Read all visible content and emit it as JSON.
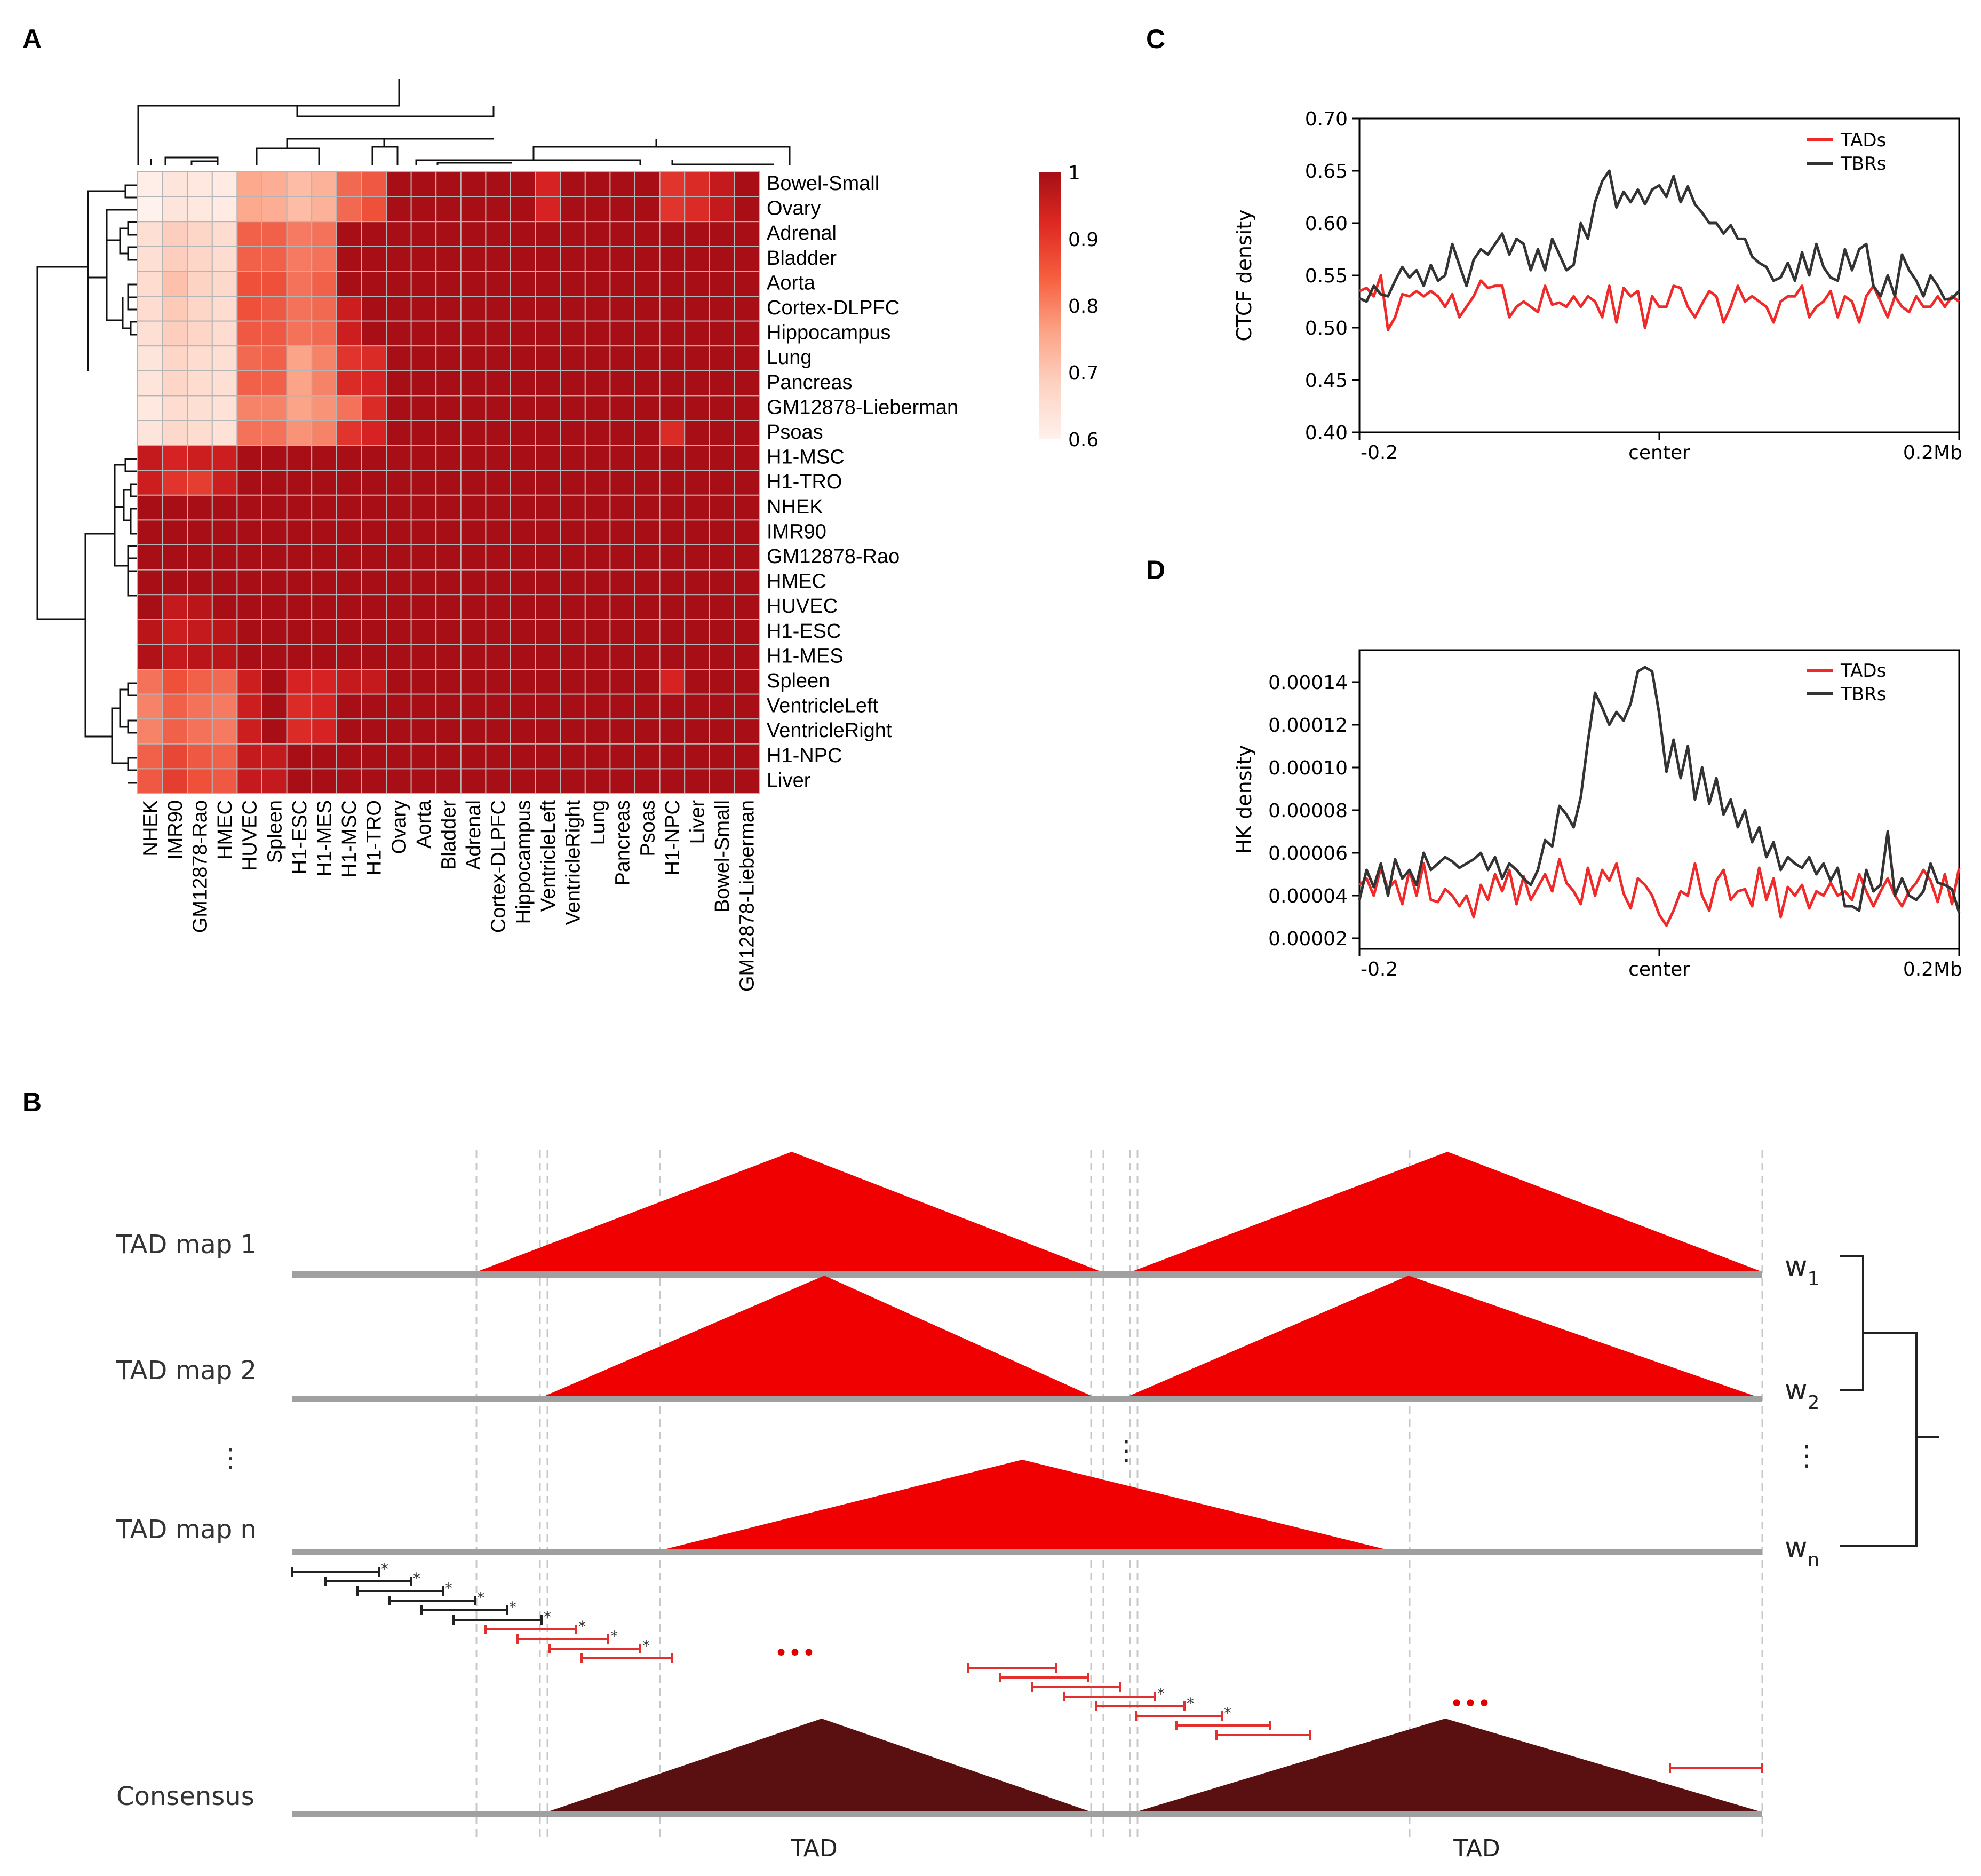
{
  "panels": {
    "a": "A",
    "b": "B",
    "c": "C",
    "d": "D"
  },
  "colors": {
    "heat_low": "#fde4dc",
    "heat_high": "#a50f15",
    "tads_line": "#ee2a2a",
    "tbrs_line": "#333333",
    "tad_fill": "#f00000",
    "consensus_fill": "#5a1010",
    "baseline": "#a0a0a0"
  },
  "heatmap": {
    "row_labels": [
      "Bowel-Small",
      "Ovary",
      "Adrenal",
      "Bladder",
      "Aorta",
      "Cortex-DLPFC",
      "Hippocampus",
      "Lung",
      "Pancreas",
      "GM12878-Lieberman",
      "Psoas",
      "H1-MSC",
      "H1-TRO",
      "NHEK",
      "IMR90",
      "GM12878-Rao",
      "HMEC",
      "HUVEC",
      "H1-ESC",
      "H1-MES",
      "Spleen",
      "VentricleLeft",
      "VentricleRight",
      "H1-NPC",
      "Liver"
    ],
    "col_labels": [
      "NHEK",
      "IMR90",
      "GM12878-Rao",
      "HMEC",
      "HUVEC",
      "Spleen",
      "H1-ESC",
      "H1-MES",
      "H1-MSC",
      "H1-TRO",
      "Ovary",
      "Aorta",
      "Bladder",
      "Adrenal",
      "Cortex-DLPFC",
      "Hippocampus",
      "VentricleLeft",
      "VentricleRight",
      "Lung",
      "Pancreas",
      "Psoas",
      "H1-NPC",
      "Liver",
      "Bowel-Small",
      "GM12878-Lieberman"
    ],
    "colorbar_ticks": [
      "1",
      "0.9",
      "0.8",
      "0.7",
      "0.6"
    ],
    "values": [
      [
        0.61,
        0.64,
        0.63,
        0.62,
        0.79,
        0.78,
        0.75,
        0.77,
        0.87,
        0.89,
        1,
        1,
        1,
        1,
        1,
        1,
        0.95,
        1,
        1,
        1,
        1,
        0.93,
        0.94,
        0.97,
        1
      ],
      [
        0.6,
        0.64,
        0.63,
        0.62,
        0.79,
        0.78,
        0.75,
        0.77,
        0.87,
        0.9,
        1,
        1,
        1,
        1,
        1,
        1,
        0.95,
        1,
        1,
        1,
        1,
        0.93,
        0.94,
        0.97,
        1
      ],
      [
        0.66,
        0.71,
        0.69,
        0.67,
        0.88,
        0.88,
        0.85,
        0.86,
        1,
        1,
        1,
        1,
        1,
        1,
        1,
        1,
        1,
        1,
        1,
        1,
        1,
        1,
        1,
        1,
        1
      ],
      [
        0.66,
        0.71,
        0.69,
        0.67,
        0.88,
        0.88,
        0.85,
        0.86,
        1,
        1,
        1,
        1,
        1,
        1,
        1,
        1,
        1,
        1,
        1,
        1,
        1,
        1,
        1,
        1,
        1
      ],
      [
        0.67,
        0.74,
        0.7,
        0.68,
        0.9,
        0.9,
        0.86,
        0.88,
        1,
        1,
        1,
        1,
        1,
        1,
        1,
        1,
        1,
        1,
        1,
        1,
        1,
        1,
        1,
        1,
        1
      ],
      [
        0.67,
        0.72,
        0.69,
        0.67,
        0.9,
        0.89,
        0.86,
        0.87,
        0.96,
        1,
        1,
        1,
        1,
        1,
        1,
        1,
        1,
        1,
        1,
        1,
        1,
        1,
        1,
        1,
        1
      ],
      [
        0.66,
        0.71,
        0.69,
        0.67,
        0.89,
        0.89,
        0.86,
        0.87,
        0.96,
        1,
        1,
        1,
        1,
        1,
        1,
        1,
        1,
        1,
        1,
        1,
        1,
        1,
        1,
        1,
        1
      ],
      [
        0.64,
        0.69,
        0.67,
        0.66,
        0.87,
        0.88,
        0.8,
        0.84,
        0.93,
        0.94,
        1,
        1,
        1,
        1,
        1,
        1,
        1,
        1,
        1,
        1,
        1,
        1,
        1,
        1,
        1
      ],
      [
        0.64,
        0.69,
        0.67,
        0.66,
        0.88,
        0.88,
        0.8,
        0.84,
        0.94,
        0.95,
        1,
        1,
        1,
        1,
        1,
        1,
        1,
        1,
        1,
        1,
        1,
        1,
        1,
        1,
        1
      ],
      [
        0.63,
        0.67,
        0.66,
        0.65,
        0.84,
        0.84,
        0.8,
        0.82,
        0.86,
        0.94,
        1,
        1,
        1,
        1,
        1,
        1,
        1,
        1,
        1,
        1,
        1,
        1,
        1,
        1,
        1
      ],
      [
        0.64,
        0.68,
        0.67,
        0.65,
        0.86,
        0.86,
        0.82,
        0.84,
        0.93,
        0.95,
        1,
        1,
        1,
        1,
        1,
        1,
        1,
        1,
        1,
        1,
        1,
        0.94,
        1,
        1,
        1
      ],
      [
        0.97,
        0.95,
        0.96,
        0.96,
        1,
        1,
        1,
        1,
        1,
        1,
        1,
        1,
        1,
        1,
        1,
        1,
        1,
        1,
        1,
        1,
        1,
        1,
        1,
        1,
        1
      ],
      [
        0.96,
        0.93,
        0.92,
        0.96,
        1,
        1,
        1,
        1,
        1,
        1,
        1,
        1,
        1,
        1,
        1,
        1,
        1,
        1,
        1,
        1,
        1,
        1,
        1,
        1,
        1
      ],
      [
        1,
        1,
        1,
        1,
        1,
        1,
        1,
        1,
        1,
        1,
        1,
        1,
        1,
        1,
        1,
        1,
        1,
        1,
        1,
        1,
        1,
        1,
        1,
        1,
        1
      ],
      [
        1,
        1,
        1,
        1,
        1,
        1,
        1,
        1,
        1,
        1,
        1,
        1,
        1,
        1,
        1,
        1,
        1,
        1,
        1,
        1,
        1,
        1,
        1,
        1,
        1
      ],
      [
        1,
        1,
        1,
        1,
        1,
        1,
        1,
        1,
        1,
        1,
        1,
        1,
        1,
        1,
        1,
        1,
        1,
        1,
        1,
        1,
        1,
        1,
        1,
        1,
        1
      ],
      [
        1,
        1,
        1,
        1,
        1,
        1,
        1,
        1,
        1,
        1,
        1,
        1,
        1,
        1,
        1,
        1,
        1,
        1,
        1,
        1,
        1,
        1,
        1,
        1,
        1
      ],
      [
        1,
        0.97,
        0.98,
        1,
        1,
        1,
        1,
        1,
        1,
        1,
        1,
        1,
        1,
        1,
        1,
        1,
        1,
        1,
        1,
        1,
        1,
        1,
        1,
        1,
        1
      ],
      [
        0.98,
        0.96,
        0.97,
        0.98,
        1,
        1,
        1,
        1,
        1,
        1,
        1,
        1,
        1,
        1,
        1,
        1,
        1,
        1,
        1,
        1,
        1,
        1,
        1,
        1,
        1
      ],
      [
        0.99,
        0.97,
        0.98,
        0.98,
        1,
        1,
        1,
        1,
        1,
        1,
        1,
        1,
        1,
        1,
        1,
        1,
        1,
        1,
        1,
        1,
        1,
        1,
        1,
        1,
        1
      ],
      [
        0.86,
        0.9,
        0.88,
        0.87,
        0.96,
        1,
        0.95,
        0.95,
        0.97,
        0.97,
        1,
        1,
        1,
        1,
        1,
        1,
        1,
        1,
        1,
        1,
        1,
        0.95,
        1,
        1,
        1
      ],
      [
        0.84,
        0.88,
        0.86,
        0.85,
        0.96,
        1,
        0.94,
        0.95,
        1,
        1,
        1,
        1,
        1,
        1,
        1,
        1,
        1,
        1,
        1,
        1,
        1,
        1,
        1,
        1,
        1
      ],
      [
        0.84,
        0.88,
        0.86,
        0.85,
        0.96,
        1,
        0.94,
        0.95,
        1,
        1,
        1,
        1,
        1,
        1,
        1,
        1,
        1,
        1,
        1,
        1,
        1,
        1,
        1,
        1,
        1
      ],
      [
        0.88,
        0.91,
        0.89,
        0.88,
        0.97,
        0.97,
        1,
        1,
        1,
        1,
        1,
        1,
        1,
        1,
        1,
        1,
        1,
        1,
        1,
        1,
        1,
        1,
        1,
        1,
        1
      ],
      [
        0.89,
        0.92,
        0.9,
        0.89,
        0.97,
        0.97,
        1,
        1,
        1,
        1,
        1,
        1,
        1,
        1,
        1,
        1,
        1,
        1,
        1,
        1,
        1,
        1,
        1,
        1,
        1
      ]
    ]
  },
  "chart_data": [
    {
      "type": "line",
      "panel": "C",
      "ylabel": "CTCF density",
      "xlabel": "",
      "x_tick_labels": [
        "-0.2",
        "center",
        "0.2Mb"
      ],
      "ylim": [
        0.4,
        0.7
      ],
      "yticks": [
        "0.70",
        "0.65",
        "0.60",
        "0.55",
        "0.50",
        "0.45",
        "0.40"
      ],
      "legend": [
        "TADs",
        "TBRs"
      ],
      "legend_position": "top-right",
      "series": [
        {
          "name": "TADs",
          "values": [
            0.535,
            0.538,
            0.53,
            0.55,
            0.498,
            0.51,
            0.532,
            0.53,
            0.535,
            0.53,
            0.535,
            0.53,
            0.52,
            0.532,
            0.51,
            0.52,
            0.53,
            0.545,
            0.538,
            0.54,
            0.54,
            0.51,
            0.52,
            0.525,
            0.52,
            0.515,
            0.54,
            0.522,
            0.524,
            0.52,
            0.53,
            0.52,
            0.53,
            0.525,
            0.51,
            0.54,
            0.505,
            0.538,
            0.53,
            0.535,
            0.5,
            0.53,
            0.52,
            0.52,
            0.54,
            0.538,
            0.52,
            0.51,
            0.523,
            0.535,
            0.53,
            0.505,
            0.52,
            0.54,
            0.525,
            0.53,
            0.525,
            0.52,
            0.505,
            0.525,
            0.53,
            0.53,
            0.54,
            0.51,
            0.52,
            0.525,
            0.535,
            0.51,
            0.53,
            0.525,
            0.505,
            0.53,
            0.54,
            0.525,
            0.51,
            0.53,
            0.52,
            0.515,
            0.53,
            0.52,
            0.52,
            0.53,
            0.52,
            0.53,
            0.525
          ]
        },
        {
          "name": "TBRs",
          "values": [
            0.528,
            0.525,
            0.54,
            0.532,
            0.53,
            0.545,
            0.558,
            0.548,
            0.555,
            0.54,
            0.56,
            0.545,
            0.55,
            0.58,
            0.56,
            0.54,
            0.565,
            0.575,
            0.57,
            0.58,
            0.59,
            0.57,
            0.585,
            0.58,
            0.555,
            0.575,
            0.555,
            0.585,
            0.57,
            0.555,
            0.56,
            0.6,
            0.585,
            0.62,
            0.64,
            0.65,
            0.615,
            0.63,
            0.62,
            0.632,
            0.618,
            0.632,
            0.636,
            0.625,
            0.645,
            0.62,
            0.635,
            0.618,
            0.61,
            0.6,
            0.6,
            0.59,
            0.598,
            0.585,
            0.585,
            0.568,
            0.562,
            0.558,
            0.545,
            0.548,
            0.562,
            0.545,
            0.572,
            0.55,
            0.58,
            0.558,
            0.548,
            0.545,
            0.575,
            0.555,
            0.575,
            0.58,
            0.54,
            0.53,
            0.55,
            0.53,
            0.57,
            0.555,
            0.545,
            0.53,
            0.55,
            0.54,
            0.527,
            0.528,
            0.535
          ]
        }
      ]
    },
    {
      "type": "line",
      "panel": "D",
      "ylabel": "HK density",
      "xlabel": "",
      "x_tick_labels": [
        "-0.2",
        "center",
        "0.2Mb"
      ],
      "ylim": [
        1.5e-05,
        0.000155
      ],
      "yticks": [
        "0.00014",
        "0.00012",
        "0.00010",
        "0.00008",
        "0.00006",
        "0.00004",
        "0.00002"
      ],
      "legend": [
        "TADs",
        "TBRs"
      ],
      "legend_position": "top-right",
      "series": [
        {
          "name": "TADs",
          "values": [
            4.5e-05,
            4.8e-05,
            4e-05,
            5.3e-05,
            4.3e-05,
            4.7e-05,
            3.6e-05,
            5.2e-05,
            4e-05,
            5.5e-05,
            3.8e-05,
            3.7e-05,
            4.3e-05,
            4e-05,
            3.5e-05,
            4e-05,
            3e-05,
            4.5e-05,
            3.8e-05,
            5e-05,
            4.2e-05,
            5.2e-05,
            3.6e-05,
            4.9e-05,
            3.8e-05,
            4.4e-05,
            5e-05,
            4.2e-05,
            5.7e-05,
            4.6e-05,
            4.2e-05,
            3.6e-05,
            5.3e-05,
            4e-05,
            5.2e-05,
            4.7e-05,
            5.5e-05,
            4.1e-05,
            3.4e-05,
            4.8e-05,
            4.5e-05,
            4e-05,
            3.1e-05,
            2.6e-05,
            3.3e-05,
            4.2e-05,
            4e-05,
            5.5e-05,
            4e-05,
            3.3e-05,
            4.7e-05,
            5.2e-05,
            3.8e-05,
            4.2e-05,
            4.3e-05,
            3.5e-05,
            5.3e-05,
            3.8e-05,
            4.8e-05,
            3e-05,
            4.4e-05,
            4e-05,
            4.5e-05,
            3.4e-05,
            4.2e-05,
            4e-05,
            4.6e-05,
            4e-05,
            4.2e-05,
            3.8e-05,
            5e-05,
            4.2e-05,
            3.5e-05,
            4.2e-05,
            4.8e-05,
            4e-05,
            3.5e-05,
            4.2e-05,
            4.6e-05,
            5.2e-05,
            4.7e-05,
            3.7e-05,
            5e-05,
            3.6e-05,
            5.3e-05
          ]
        },
        {
          "name": "TBRs",
          "values": [
            3.8e-05,
            5.2e-05,
            4.4e-05,
            5.5e-05,
            4e-05,
            5.7e-05,
            4.8e-05,
            5.2e-05,
            4.5e-05,
            6e-05,
            5.2e-05,
            5.5e-05,
            5.8e-05,
            5.6e-05,
            5.3e-05,
            5.5e-05,
            5.7e-05,
            6e-05,
            5.2e-05,
            5.8e-05,
            4.8e-05,
            5.5e-05,
            5.2e-05,
            4.8e-05,
            4.5e-05,
            5.2e-05,
            6.6e-05,
            6.3e-05,
            8.2e-05,
            7.8e-05,
            7.2e-05,
            8.6e-05,
            0.000112,
            0.000135,
            0.000128,
            0.00012,
            0.000126,
            0.000122,
            0.00013,
            0.000145,
            0.000147,
            0.000145,
            0.000125,
            9.8e-05,
            0.000113,
            9.5e-05,
            0.00011,
            8.5e-05,
            0.0001,
            8.3e-05,
            9.5e-05,
            7.8e-05,
            8.5e-05,
            7.2e-05,
            8e-05,
            6.5e-05,
            7.2e-05,
            5.8e-05,
            6.5e-05,
            5.2e-05,
            5.8e-05,
            5.5e-05,
            5.3e-05,
            5.8e-05,
            5e-05,
            5.5e-05,
            4.7e-05,
            5.3e-05,
            3.5e-05,
            3.5e-05,
            3.3e-05,
            5.2e-05,
            4.2e-05,
            4.5e-05,
            7e-05,
            4e-05,
            4.8e-05,
            4e-05,
            3.8e-05,
            4.2e-05,
            5.5e-05,
            4.6e-05,
            4.5e-05,
            4.3e-05,
            3.2e-05
          ]
        }
      ]
    }
  ],
  "panel_b": {
    "map_labels": [
      "TAD map 1",
      "TAD map 2",
      "⋮",
      "TAD map n",
      "Consensus"
    ],
    "weights": [
      {
        "base": "w",
        "sub": "1"
      },
      {
        "base": "w",
        "sub": "2"
      },
      {
        "base": "⋮",
        "sub": ""
      },
      {
        "base": "w",
        "sub": "n"
      }
    ],
    "middle_dots": "⋮",
    "ellipsis": "•••",
    "star": "*",
    "tad_labels": [
      "TAD",
      "TAD"
    ]
  }
}
